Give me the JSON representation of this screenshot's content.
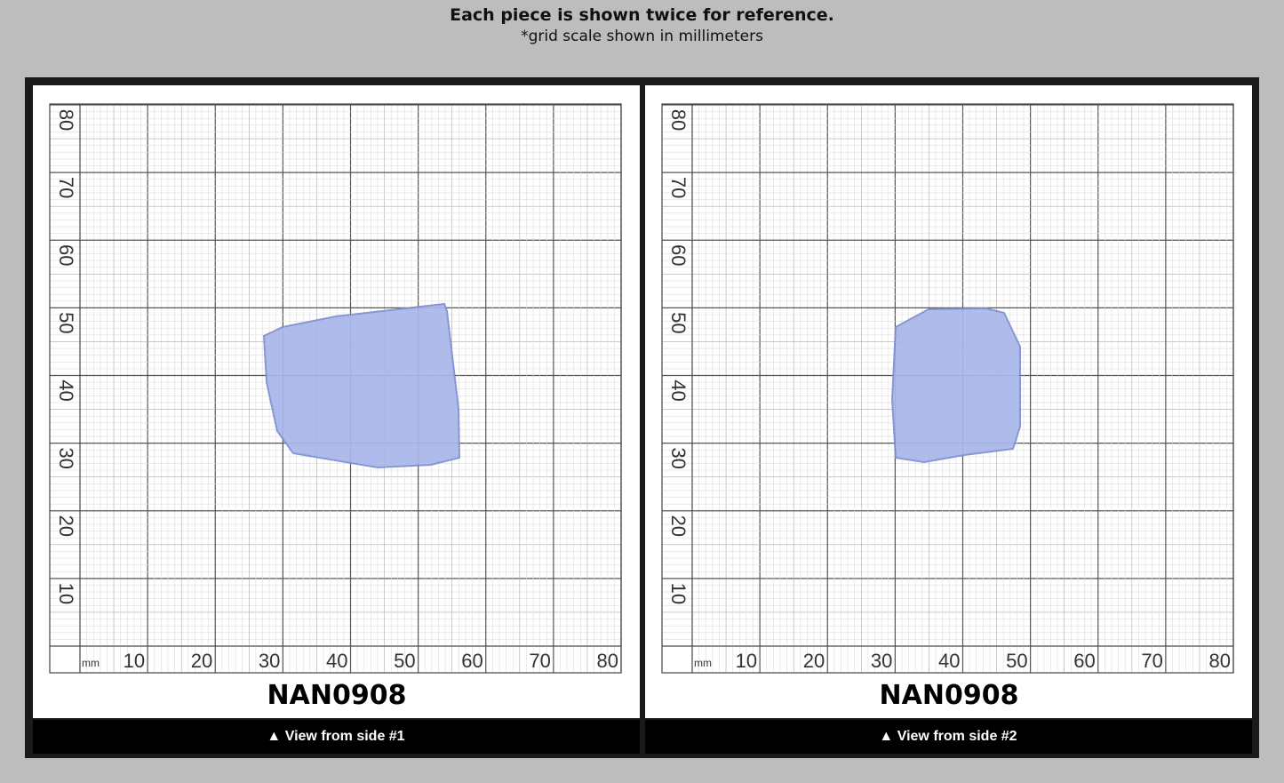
{
  "header": {
    "title": "Each piece is shown twice for reference.",
    "subtitle": "*grid scale shown in millimeters"
  },
  "panels": [
    {
      "label": "NAN0908",
      "caption": "▲ View from side #1",
      "unit": "mm",
      "x_labels": [
        "10",
        "20",
        "30",
        "40",
        "50",
        "60",
        "70",
        "80"
      ],
      "y_labels": [
        "10",
        "20",
        "30",
        "40",
        "50",
        "60",
        "70",
        "80"
      ]
    },
    {
      "label": "NAN0908",
      "caption": "▲ View from side #2",
      "unit": "mm",
      "x_labels": [
        "10",
        "20",
        "30",
        "40",
        "50",
        "60",
        "70",
        "80"
      ],
      "y_labels": [
        "10",
        "20",
        "30",
        "40",
        "50",
        "60",
        "70",
        "80"
      ]
    }
  ]
}
